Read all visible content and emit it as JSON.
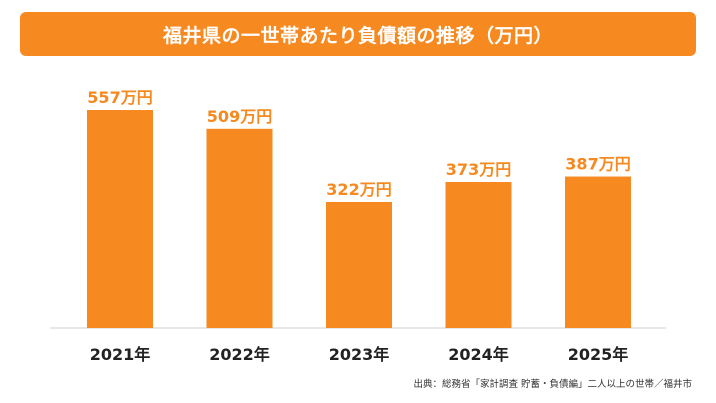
{
  "title": "福井県の一世帯あたり負債額の推移（万円）",
  "source": "出典：総務省「家計調査 貯蓄・負債編」二人以上の世帯／福井市",
  "colors": {
    "accent": "#f6891f",
    "axis": "#cfcfcf",
    "text": "#222222"
  },
  "chart_data": {
    "type": "bar",
    "title": "福井県の一世帯あたり負債額の推移（万円）",
    "categories": [
      "2021年",
      "2022年",
      "2023年",
      "2024年",
      "2025年"
    ],
    "values": [
      557,
      509,
      322,
      373,
      387
    ],
    "data_labels": [
      "557万円",
      "509万円",
      "322万円",
      "373万円",
      "387万円"
    ],
    "unit": "万円",
    "xlabel": "",
    "ylabel": "",
    "ylim": [
      0,
      600
    ],
    "grid": false,
    "legend": "none"
  }
}
